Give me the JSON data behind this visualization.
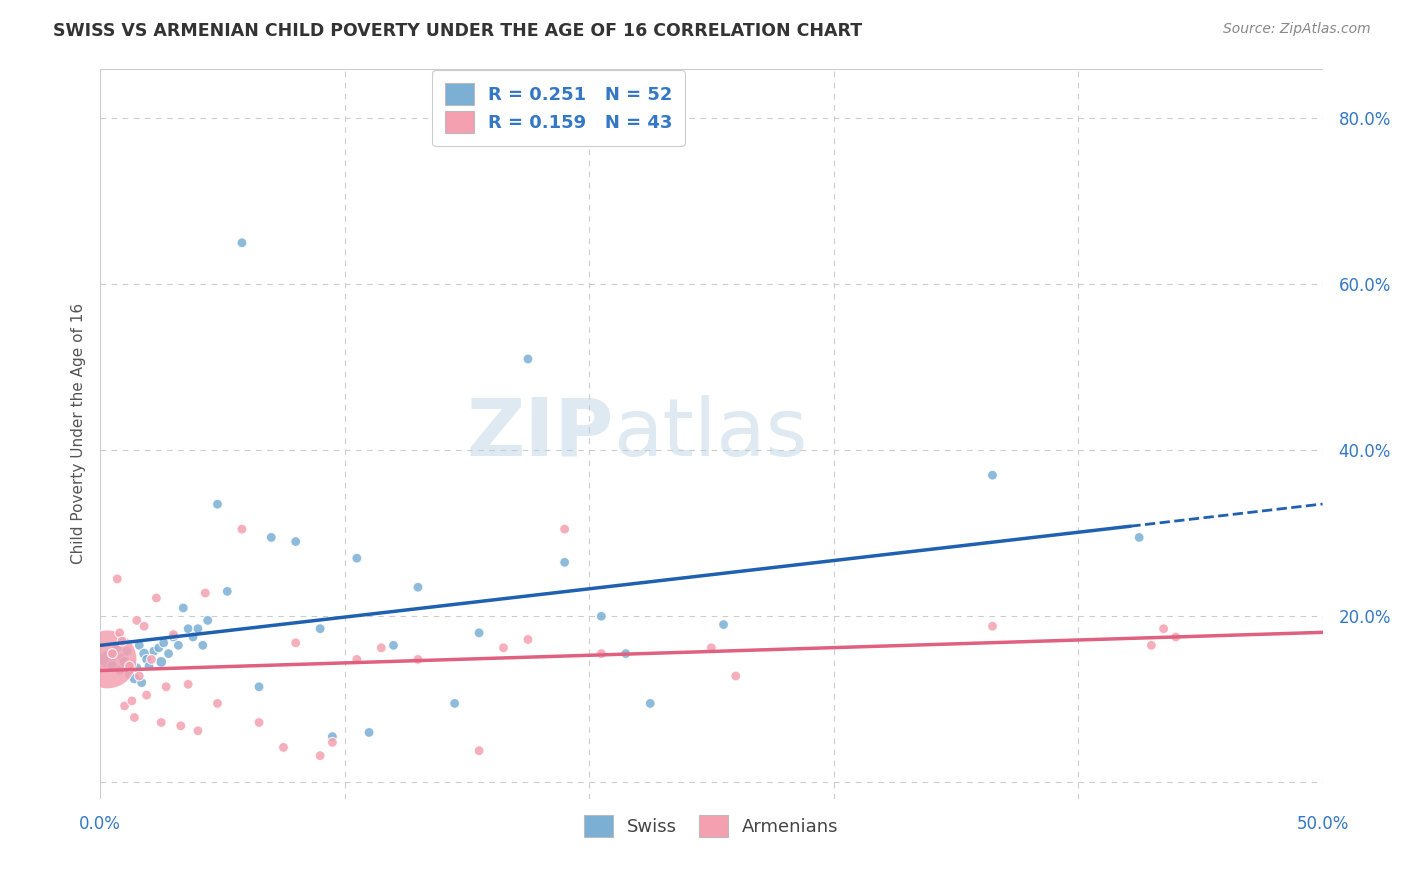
{
  "title": "SWISS VS ARMENIAN CHILD POVERTY UNDER THE AGE OF 16 CORRELATION CHART",
  "source": "Source: ZipAtlas.com",
  "ylabel": "Child Poverty Under the Age of 16",
  "xlim": [
    0.0,
    0.5
  ],
  "ylim": [
    -0.02,
    0.86
  ],
  "swiss_color": "#7bafd4",
  "armenian_color": "#f4a0b0",
  "swiss_R": 0.251,
  "swiss_N": 52,
  "armenian_R": 0.159,
  "armenian_N": 43,
  "legend_label_swiss": "Swiss",
  "legend_label_armenian": "Armenians",
  "line_color_swiss": "#2060b0",
  "line_color_armenian": "#e06080",
  "stat_color": "#3478c5",
  "watermark": "ZIPatlas",
  "grid_color": "#cccccc",
  "tick_color": "#3478c5",
  "title_color": "#333333",
  "ylabel_color": "#555555",
  "source_color": "#888888",
  "swiss_x": [
    0.003,
    0.005,
    0.006,
    0.007,
    0.008,
    0.009,
    0.01,
    0.011,
    0.012,
    0.013,
    0.014,
    0.015,
    0.016,
    0.017,
    0.018,
    0.019,
    0.02,
    0.022,
    0.024,
    0.025,
    0.026,
    0.028,
    0.03,
    0.032,
    0.034,
    0.036,
    0.038,
    0.04,
    0.042,
    0.044,
    0.048,
    0.052,
    0.058,
    0.065,
    0.07,
    0.08,
    0.09,
    0.095,
    0.105,
    0.11,
    0.12,
    0.13,
    0.145,
    0.155,
    0.175,
    0.19,
    0.205,
    0.215,
    0.225,
    0.255,
    0.365,
    0.425
  ],
  "swiss_y": [
    0.148,
    0.14,
    0.155,
    0.162,
    0.135,
    0.15,
    0.145,
    0.158,
    0.13,
    0.142,
    0.125,
    0.138,
    0.165,
    0.12,
    0.155,
    0.148,
    0.14,
    0.158,
    0.162,
    0.145,
    0.168,
    0.155,
    0.175,
    0.165,
    0.21,
    0.185,
    0.175,
    0.185,
    0.165,
    0.195,
    0.335,
    0.23,
    0.65,
    0.115,
    0.295,
    0.29,
    0.185,
    0.055,
    0.27,
    0.06,
    0.165,
    0.235,
    0.095,
    0.18,
    0.51,
    0.265,
    0.2,
    0.155,
    0.095,
    0.19,
    0.37,
    0.295
  ],
  "swiss_size": [
    160,
    60,
    50,
    50,
    50,
    50,
    60,
    50,
    50,
    50,
    60,
    50,
    50,
    50,
    60,
    50,
    50,
    50,
    50,
    60,
    50,
    50,
    50,
    50,
    50,
    50,
    50,
    50,
    50,
    50,
    50,
    50,
    50,
    50,
    50,
    50,
    50,
    50,
    50,
    50,
    50,
    50,
    50,
    50,
    50,
    50,
    50,
    50,
    50,
    50,
    50,
    50
  ],
  "armenian_x": [
    0.003,
    0.005,
    0.007,
    0.008,
    0.009,
    0.01,
    0.012,
    0.013,
    0.014,
    0.015,
    0.016,
    0.018,
    0.019,
    0.021,
    0.023,
    0.025,
    0.027,
    0.03,
    0.033,
    0.036,
    0.04,
    0.043,
    0.048,
    0.058,
    0.065,
    0.075,
    0.08,
    0.09,
    0.095,
    0.105,
    0.115,
    0.13,
    0.155,
    0.165,
    0.175,
    0.19,
    0.205,
    0.25,
    0.26,
    0.365,
    0.43,
    0.435,
    0.44
  ],
  "armenian_y": [
    0.148,
    0.155,
    0.245,
    0.18,
    0.17,
    0.092,
    0.14,
    0.098,
    0.078,
    0.195,
    0.128,
    0.188,
    0.105,
    0.148,
    0.222,
    0.072,
    0.115,
    0.178,
    0.068,
    0.118,
    0.062,
    0.228,
    0.095,
    0.305,
    0.072,
    0.042,
    0.168,
    0.032,
    0.048,
    0.148,
    0.162,
    0.148,
    0.038,
    0.162,
    0.172,
    0.305,
    0.155,
    0.162,
    0.128,
    0.188,
    0.165,
    0.185,
    0.175
  ],
  "armenian_size": [
    1800,
    50,
    50,
    50,
    50,
    50,
    50,
    50,
    50,
    50,
    50,
    50,
    50,
    50,
    50,
    50,
    50,
    50,
    50,
    50,
    50,
    50,
    50,
    50,
    50,
    50,
    50,
    50,
    50,
    50,
    50,
    50,
    50,
    50,
    50,
    50,
    50,
    50,
    50,
    50,
    50,
    50,
    50
  ]
}
